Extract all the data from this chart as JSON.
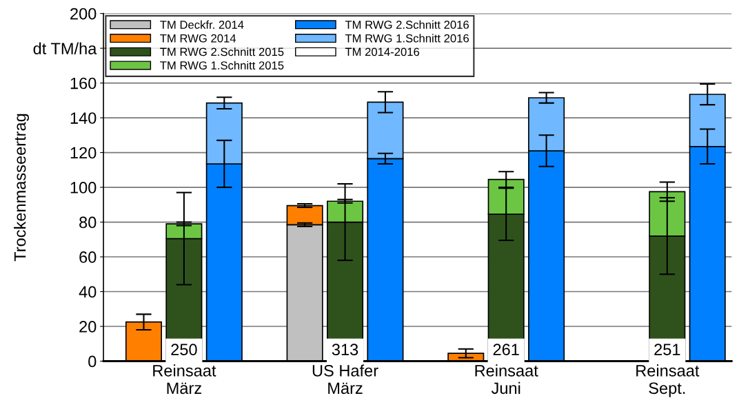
{
  "chart_data": {
    "type": "bar",
    "stacked": true,
    "ylabel": "Trockenmasseertrag",
    "categories": [
      null,
      "Reinsaat\nMärz",
      null,
      null,
      null,
      "US Hafer\nMärz",
      null,
      null,
      null,
      "Reinsaat\nJuni",
      null,
      null,
      null,
      "Reinsaat\nSept.",
      null
    ],
    "ylim": [
      0,
      200
    ],
    "yticks": [
      0,
      20,
      40,
      60,
      80,
      100,
      120,
      140,
      160,
      {
        "value": 180,
        "label": "dt TM/ha"
      },
      200
    ],
    "grid": "y",
    "legend": "top left",
    "series": [
      {
        "name": "TM Deckfr. 2014",
        "color": "#c0c0c0",
        "values": [
          null,
          null,
          null,
          null,
          78.5,
          null,
          null,
          null,
          null,
          null,
          null,
          null,
          null,
          null,
          null
        ],
        "errors": [
          null,
          null,
          null,
          null,
          1,
          null,
          null,
          null,
          null,
          null,
          null,
          null,
          null,
          null,
          null
        ]
      },
      {
        "name": "TM RWG 2014",
        "color": "#ff8000",
        "values": [
          22.5,
          null,
          null,
          null,
          11,
          null,
          null,
          null,
          4.5,
          null,
          null,
          null,
          null,
          null,
          null
        ],
        "errors": [
          4.5,
          null,
          null,
          null,
          1,
          null,
          null,
          null,
          2.5,
          null,
          null,
          null,
          null,
          null,
          null
        ]
      },
      {
        "name": "TM RWG 2.Schnitt 2015",
        "color": "#2f521d",
        "values": [
          null,
          70.5,
          null,
          null,
          null,
          80,
          null,
          null,
          null,
          84.5,
          null,
          null,
          null,
          72,
          null
        ],
        "errors": [
          null,
          26.5,
          null,
          null,
          null,
          22,
          null,
          null,
          null,
          15,
          null,
          null,
          null,
          22,
          null
        ]
      },
      {
        "name": "TM RWG 1.Schnitt 2015",
        "color": "#6cc644",
        "values": [
          null,
          8.5,
          null,
          null,
          null,
          12,
          null,
          null,
          null,
          20,
          null,
          null,
          null,
          25.5,
          null
        ],
        "errors": [
          null,
          1,
          null,
          null,
          null,
          1,
          null,
          null,
          null,
          4.5,
          null,
          null,
          null,
          5.5,
          null
        ]
      },
      {
        "name": "TM RWG 2.Schnitt 2016",
        "color": "#0080ff",
        "values": [
          null,
          null,
          113.5,
          null,
          null,
          null,
          116.5,
          null,
          null,
          null,
          121,
          null,
          null,
          null,
          123.5
        ],
        "errors": [
          null,
          null,
          13.5,
          null,
          null,
          null,
          3,
          null,
          null,
          null,
          9,
          null,
          null,
          null,
          10
        ]
      },
      {
        "name": "TM RWG 1.Schnitt 2016",
        "color": "#70b8ff",
        "values": [
          null,
          null,
          35,
          null,
          null,
          null,
          32.5,
          null,
          null,
          null,
          30.5,
          null,
          null,
          null,
          30
        ],
        "errors": [
          null,
          null,
          3.3,
          null,
          null,
          null,
          6,
          null,
          null,
          null,
          3,
          null,
          null,
          null,
          6
        ]
      },
      {
        "name": "TM 2014-2016",
        "color": "#ffffff",
        "values": [
          null,
          null,
          null,
          null,
          null,
          null,
          null,
          null,
          null,
          null,
          null,
          null,
          null,
          null,
          null
        ]
      }
    ],
    "annotations": [
      {
        "text": "250",
        "x": "Reinsaat\nMärz",
        "y": 0
      },
      {
        "text": "313",
        "x": "US Hafer\nMärz",
        "y": 0
      },
      {
        "text": "261",
        "x": "Reinsaat\nJuni",
        "y": 0
      },
      {
        "text": "251",
        "x": "Reinsaat\nSept.",
        "y": 0
      }
    ]
  }
}
